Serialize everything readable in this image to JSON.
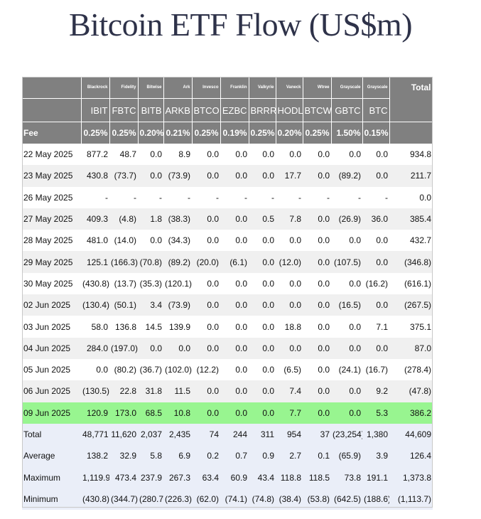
{
  "title": "Bitcoin ETF Flow (US$m)",
  "issuers": [
    "Blackrock",
    "Fidelity",
    "Bitwise",
    "Ark",
    "Invesco",
    "Franklin",
    "Valkyrie",
    "Vaneck",
    "Wtree",
    "Grayscale",
    "Grayscale"
  ],
  "tickers": [
    "IBIT",
    "FBTC",
    "BITB",
    "ARKB",
    "BTCO",
    "EZBC",
    "BRRR",
    "HODL",
    "BTCW",
    "GBTC",
    "BTC"
  ],
  "total_label": "Total",
  "fee_label": "Fee",
  "fees": [
    "0.25%",
    "0.25%",
    "0.20%",
    "0.21%",
    "0.25%",
    "0.19%",
    "0.25%",
    "0.20%",
    "0.25%",
    "1.50%",
    "0.15%"
  ],
  "rows": [
    {
      "date": "22 May 2025",
      "values": [
        "877.2",
        "48.7",
        "0.0",
        "8.9",
        "0.0",
        "0.0",
        "0.0",
        "0.0",
        "0.0",
        "0.0",
        "0.0"
      ],
      "total": "934.8"
    },
    {
      "date": "23 May 2025",
      "values": [
        "430.8",
        "(73.7)",
        "0.0",
        "(73.9)",
        "0.0",
        "0.0",
        "0.0",
        "17.7",
        "0.0",
        "(89.2)",
        "0.0"
      ],
      "total": "211.7"
    },
    {
      "date": "26 May 2025",
      "values": [
        "-",
        "-",
        "-",
        "-",
        "-",
        "-",
        "-",
        "-",
        "-",
        "-",
        "-"
      ],
      "total": "0.0"
    },
    {
      "date": "27 May 2025",
      "values": [
        "409.3",
        "(4.8)",
        "1.8",
        "(38.3)",
        "0.0",
        "0.0",
        "0.5",
        "7.8",
        "0.0",
        "(26.9)",
        "36.0"
      ],
      "total": "385.4"
    },
    {
      "date": "28 May 2025",
      "values": [
        "481.0",
        "(14.0)",
        "0.0",
        "(34.3)",
        "0.0",
        "0.0",
        "0.0",
        "0.0",
        "0.0",
        "0.0",
        "0.0"
      ],
      "total": "432.7"
    },
    {
      "date": "29 May 2025",
      "values": [
        "125.1",
        "(166.3)",
        "(70.8)",
        "(89.2)",
        "(20.0)",
        "(6.1)",
        "0.0",
        "(12.0)",
        "0.0",
        "(107.5)",
        "0.0"
      ],
      "total": "(346.8)"
    },
    {
      "date": "30 May 2025",
      "values": [
        "(430.8)",
        "(13.7)",
        "(35.3)",
        "(120.1)",
        "0.0",
        "0.0",
        "0.0",
        "0.0",
        "0.0",
        "0.0",
        "(16.2)"
      ],
      "total": "(616.1)"
    },
    {
      "date": "02 Jun 2025",
      "values": [
        "(130.4)",
        "(50.1)",
        "3.4",
        "(73.9)",
        "0.0",
        "0.0",
        "0.0",
        "0.0",
        "0.0",
        "(16.5)",
        "0.0"
      ],
      "total": "(267.5)"
    },
    {
      "date": "03 Jun 2025",
      "values": [
        "58.0",
        "136.8",
        "14.5",
        "139.9",
        "0.0",
        "0.0",
        "0.0",
        "18.8",
        "0.0",
        "0.0",
        "7.1"
      ],
      "total": "375.1"
    },
    {
      "date": "04 Jun 2025",
      "values": [
        "284.0",
        "(197.0)",
        "0.0",
        "0.0",
        "0.0",
        "0.0",
        "0.0",
        "0.0",
        "0.0",
        "0.0",
        "0.0"
      ],
      "total": "87.0"
    },
    {
      "date": "05 Jun 2025",
      "values": [
        "0.0",
        "(80.2)",
        "(36.7)",
        "(102.0)",
        "(12.2)",
        "0.0",
        "0.0",
        "(6.5)",
        "0.0",
        "(24.1)",
        "(16.7)"
      ],
      "total": "(278.4)"
    },
    {
      "date": "06 Jun 2025",
      "values": [
        "(130.5)",
        "22.8",
        "31.8",
        "11.5",
        "0.0",
        "0.0",
        "0.0",
        "7.4",
        "0.0",
        "0.0",
        "9.2"
      ],
      "total": "(47.8)"
    },
    {
      "date": "09 Jun 2025",
      "values": [
        "120.9",
        "173.0",
        "68.5",
        "10.8",
        "0.0",
        "0.0",
        "0.0",
        "7.7",
        "0.0",
        "0.0",
        "5.3"
      ],
      "total": "386.2",
      "highlight": true
    }
  ],
  "summary": [
    {
      "label": "Total",
      "values": [
        "48,771",
        "11,620",
        "2,037",
        "2,435",
        "74",
        "244",
        "311",
        "954",
        "37",
        "(23,254)",
        "1,380"
      ],
      "total": "44,609"
    },
    {
      "label": "Average",
      "values": [
        "138.2",
        "32.9",
        "5.8",
        "6.9",
        "0.2",
        "0.7",
        "0.9",
        "2.7",
        "0.1",
        "(65.9)",
        "3.9"
      ],
      "total": "126.4"
    },
    {
      "label": "Maximum",
      "values": [
        "1,119.9",
        "473.4",
        "237.9",
        "267.3",
        "63.4",
        "60.9",
        "43.4",
        "118.8",
        "118.5",
        "73.8",
        "191.1"
      ],
      "total": "1,373.8"
    },
    {
      "label": "Minimum",
      "values": [
        "(430.8)",
        "(344.7)",
        "(280.7)",
        "(226.3)",
        "(62.0)",
        "(74.1)",
        "(74.8)",
        "(38.4)",
        "(53.8)",
        "(642.5)",
        "(188.6)"
      ],
      "total": "(1,113.7)"
    }
  ],
  "colors": {
    "header_bg": "#808080",
    "negative": "#d11a1a",
    "highlight_row": "#98f590",
    "summary_bg": "#eaeef8",
    "title": "#2e3249"
  }
}
